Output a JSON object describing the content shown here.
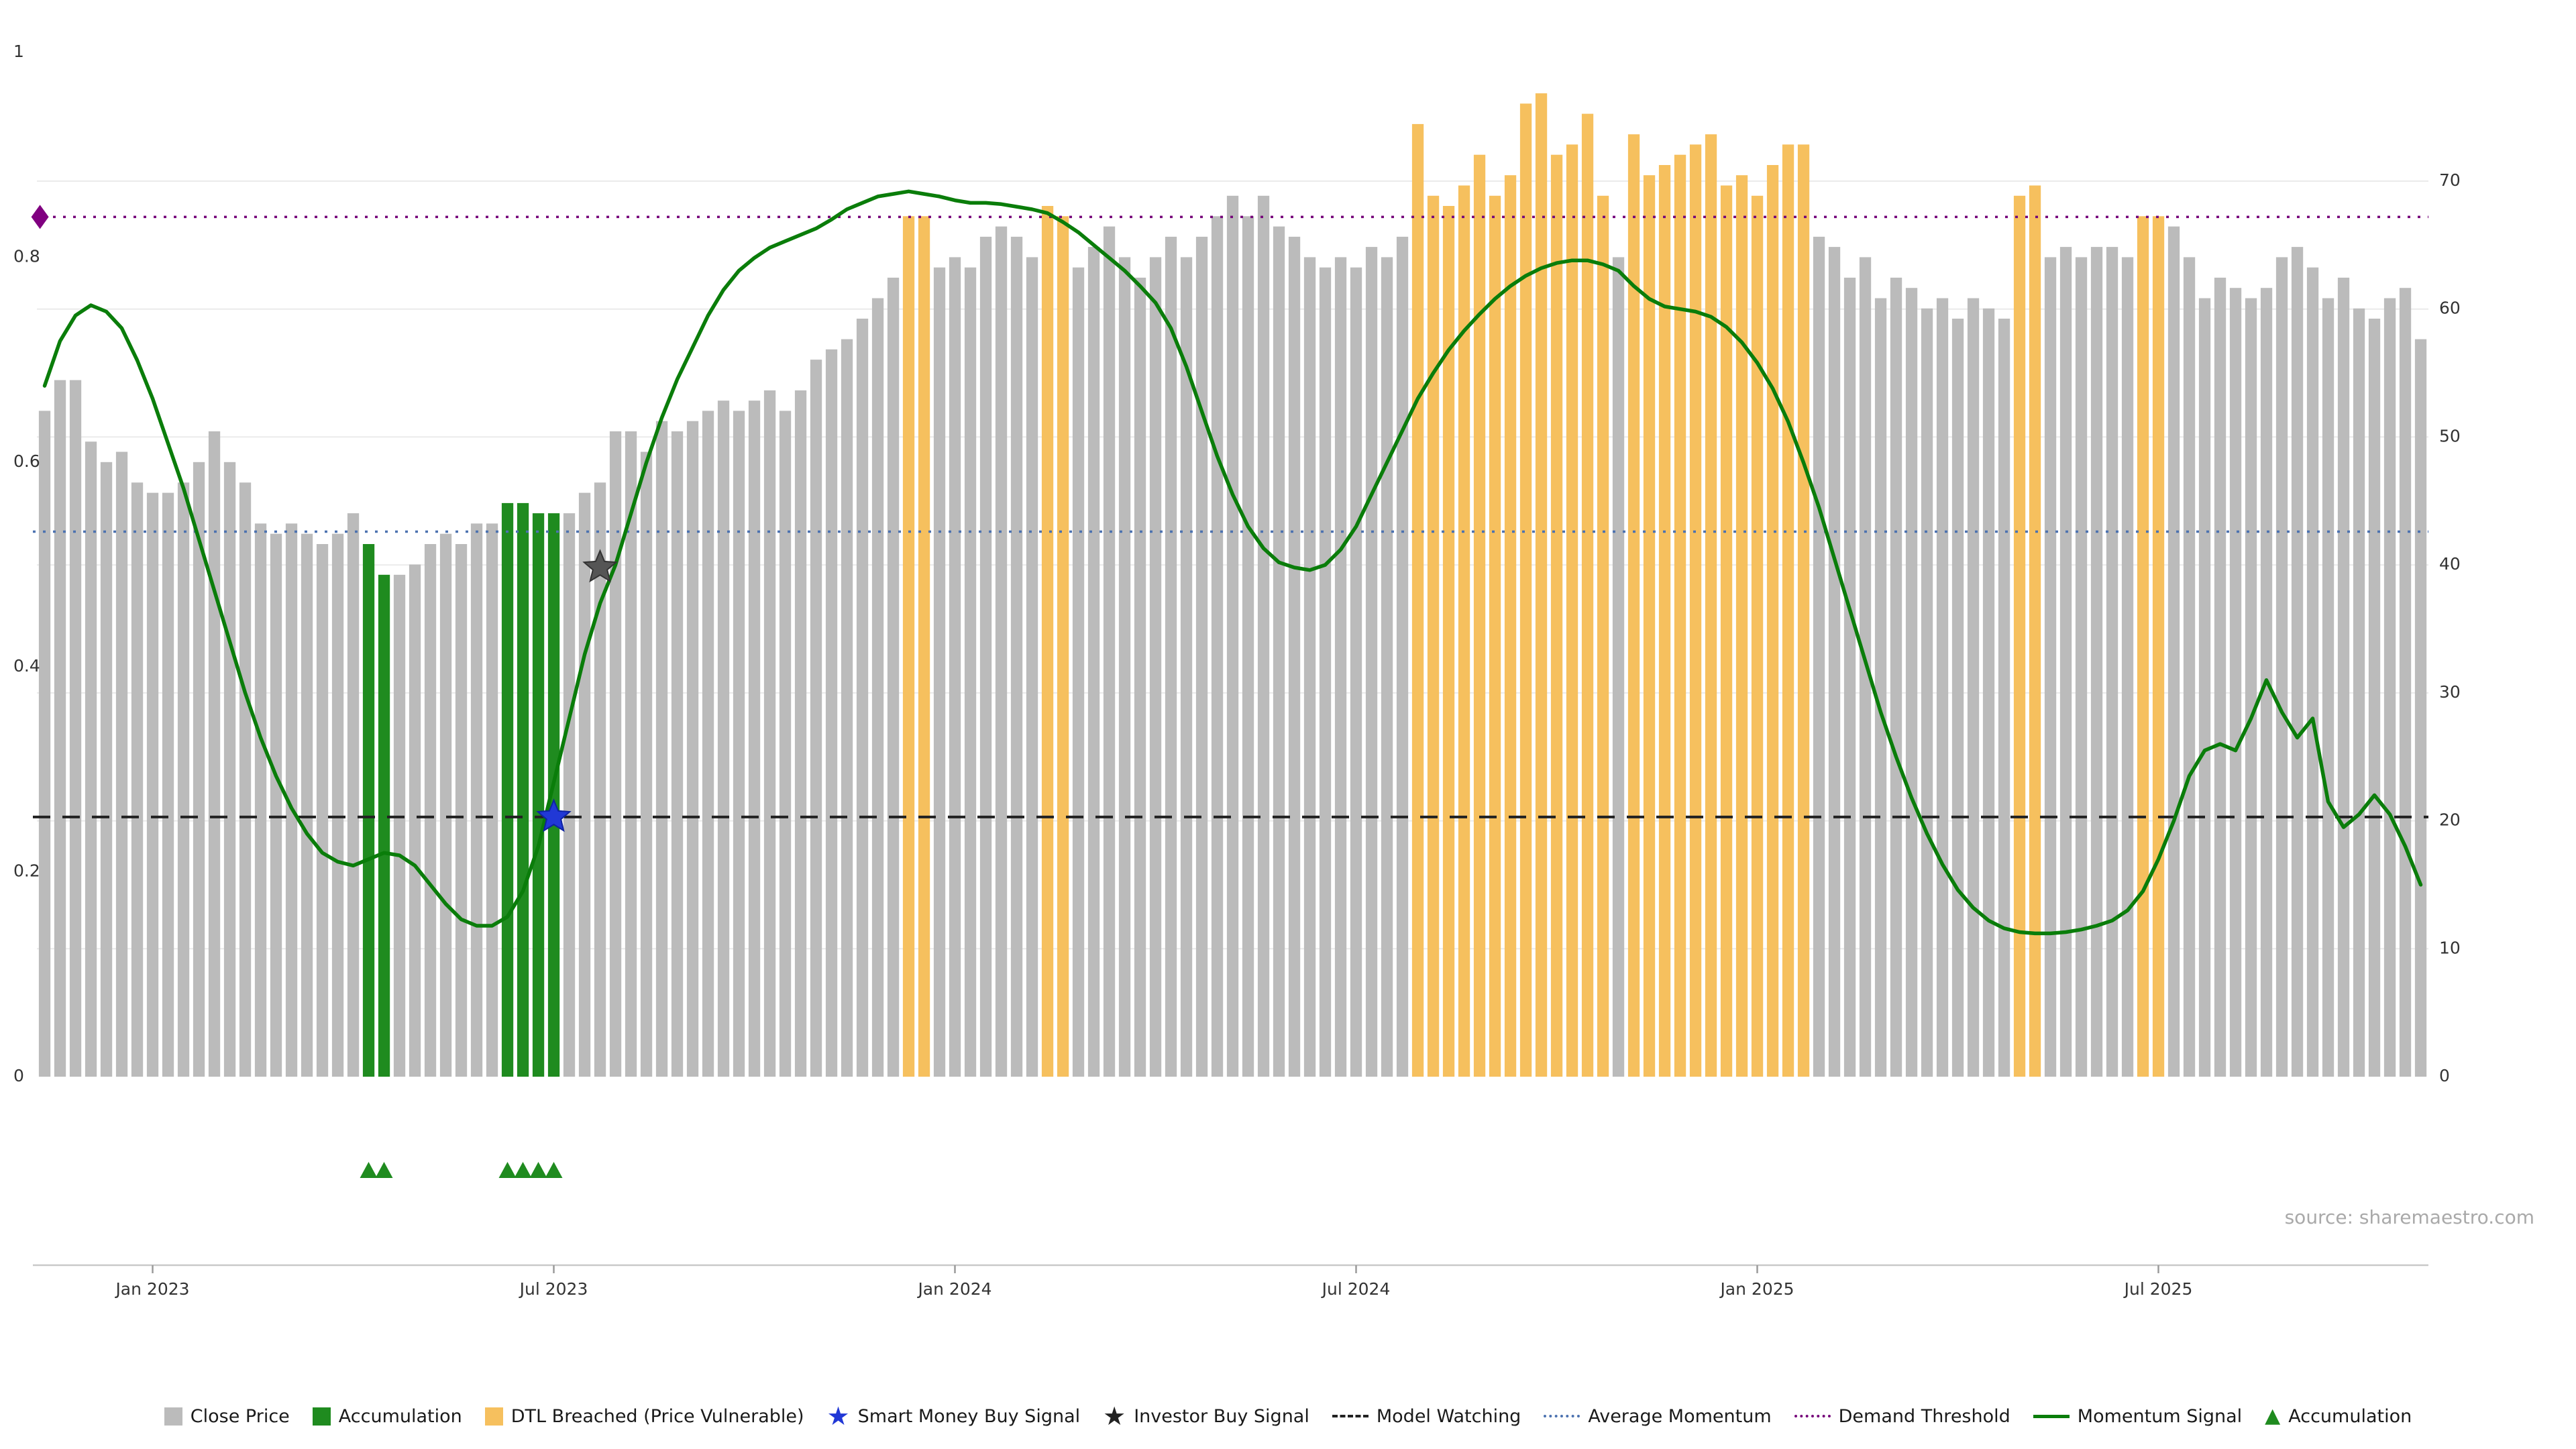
{
  "source_text": "source: sharemaestro.com",
  "colors": {
    "bar_gray": "#bbbbbb",
    "bar_green": "#1f8b1f",
    "bar_orange": "#f6c05e",
    "momentum_line": "#0a7d0a",
    "average_momentum": "#4c72b0",
    "demand_threshold": "#76067a",
    "model_watching": "#222222",
    "smart_money_star": "#2138d6",
    "investor_star": "#555555",
    "demand_diamond": "#800080",
    "grid": "#ebebeb",
    "axis_line": "#c9c9c9",
    "tick_text": "#333333"
  },
  "chart_data": {
    "type": "bar",
    "title": "",
    "xlabel": "",
    "ylabel_left": "",
    "ylabel_right": "",
    "x_tick_labels": [
      "Jan 2023",
      "Jul 2023",
      "Jan 2024",
      "Jul 2024",
      "Jan 2025",
      "Jul 2025"
    ],
    "x_tick_indices": [
      7,
      33,
      59,
      85,
      111,
      137
    ],
    "left_axis": {
      "ticks": [
        0,
        0.2,
        0.4,
        0.6,
        0.8,
        1
      ],
      "range": [
        0,
        1
      ]
    },
    "right_axis": {
      "ticks": [
        0,
        10,
        20,
        30,
        40,
        50,
        60,
        70
      ],
      "range": [
        0,
        70
      ]
    },
    "grid": "horizontal-faint",
    "legend_position": "bottom-center",
    "series": [
      {
        "name": "Close Price",
        "type": "bar",
        "axis": "left",
        "values": [
          0.65,
          0.68,
          0.68,
          0.62,
          0.6,
          0.61,
          0.58,
          0.57,
          0.57,
          0.58,
          0.6,
          0.63,
          0.6,
          0.58,
          0.54,
          0.53,
          0.54,
          0.53,
          0.52,
          0.53,
          0.55,
          0.52,
          0.49,
          0.49,
          0.5,
          0.52,
          0.53,
          0.52,
          0.54,
          0.54,
          0.56,
          0.56,
          0.55,
          0.55,
          0.55,
          0.57,
          0.58,
          0.63,
          0.63,
          0.61,
          0.64,
          0.63,
          0.64,
          0.65,
          0.66,
          0.65,
          0.66,
          0.67,
          0.65,
          0.67,
          0.7,
          0.71,
          0.72,
          0.74,
          0.76,
          0.78,
          0.84,
          0.84,
          0.79,
          0.8,
          0.79,
          0.82,
          0.83,
          0.82,
          0.8,
          0.85,
          0.84,
          0.79,
          0.81,
          0.83,
          0.8,
          0.78,
          0.8,
          0.82,
          0.8,
          0.82,
          0.84,
          0.86,
          0.84,
          0.86,
          0.83,
          0.82,
          0.8,
          0.79,
          0.8,
          0.79,
          0.81,
          0.8,
          0.82,
          0.93,
          0.86,
          0.85,
          0.87,
          0.9,
          0.86,
          0.88,
          0.95,
          0.96,
          0.9,
          0.91,
          0.94,
          0.86,
          0.8,
          0.92,
          0.88,
          0.89,
          0.9,
          0.91,
          0.92,
          0.87,
          0.88,
          0.86,
          0.89,
          0.91,
          0.91,
          0.82,
          0.81,
          0.78,
          0.8,
          0.76,
          0.78,
          0.77,
          0.75,
          0.76,
          0.74,
          0.76,
          0.75,
          0.74,
          0.86,
          0.87,
          0.8,
          0.81,
          0.8,
          0.81,
          0.81,
          0.8,
          0.84,
          0.84,
          0.83,
          0.8,
          0.76,
          0.78,
          0.77,
          0.76,
          0.77,
          0.8,
          0.81,
          0.79,
          0.76,
          0.78,
          0.75,
          0.74,
          0.76,
          0.77,
          0.72
        ]
      },
      {
        "name": "Momentum Signal",
        "type": "line",
        "axis": "right",
        "values": [
          54,
          57.5,
          59.5,
          60.3,
          59.8,
          58.5,
          56,
          53,
          49.5,
          46,
          42,
          38,
          34,
          30,
          26.5,
          23.5,
          21,
          19,
          17.5,
          16.8,
          16.5,
          17,
          17.5,
          17.3,
          16.5,
          15,
          13.5,
          12.3,
          11.8,
          11.8,
          12.5,
          14.5,
          18,
          23,
          28,
          33,
          37,
          40,
          44,
          48,
          51.5,
          54.5,
          57,
          59.5,
          61.5,
          63,
          64,
          64.8,
          65.3,
          65.8,
          66.3,
          67,
          67.8,
          68.3,
          68.8,
          69,
          69.2,
          69,
          68.8,
          68.5,
          68.3,
          68.3,
          68.2,
          68,
          67.8,
          67.5,
          66.8,
          66,
          65,
          64,
          63,
          61.8,
          60.5,
          58.5,
          55.5,
          52,
          48.5,
          45.5,
          43,
          41.3,
          40.2,
          39.8,
          39.6,
          40,
          41.2,
          43,
          45.5,
          48,
          50.5,
          53,
          55,
          56.8,
          58.3,
          59.6,
          60.8,
          61.8,
          62.6,
          63.2,
          63.6,
          63.8,
          63.8,
          63.5,
          63,
          61.8,
          60.8,
          60.2,
          60,
          59.8,
          59.4,
          58.6,
          57.4,
          55.8,
          53.8,
          51.2,
          48,
          44.5,
          40.5,
          36.5,
          32.5,
          28.5,
          25,
          21.8,
          19,
          16.6,
          14.6,
          13.2,
          12.2,
          11.6,
          11.3,
          11.2,
          11.2,
          11.3,
          11.5,
          11.8,
          12.2,
          13,
          14.5,
          17,
          20,
          23.5,
          25.5,
          26,
          25.5,
          28,
          31,
          28.5,
          26.5,
          28,
          21.5,
          19.5,
          20.5,
          22,
          20.5,
          18,
          15
        ]
      }
    ],
    "bar_highlights": {
      "accumulation_indices": [
        21,
        22,
        30,
        31,
        32,
        33
      ],
      "dtl_breached_indices": [
        56,
        57,
        65,
        66,
        89,
        90,
        91,
        92,
        93,
        94,
        95,
        96,
        97,
        98,
        99,
        100,
        101,
        103,
        104,
        105,
        106,
        107,
        108,
        109,
        110,
        111,
        112,
        113,
        114,
        128,
        129,
        136,
        137
      ]
    },
    "reference_lines": [
      {
        "name": "Demand Threshold",
        "axis": "right",
        "value": 67.2,
        "style": "dotted"
      },
      {
        "name": "Average Momentum",
        "axis": "right",
        "value": 42.6,
        "style": "dotted"
      },
      {
        "name": "Model Watching",
        "axis": "right",
        "value": 20.3,
        "style": "dashed"
      }
    ],
    "markers": [
      {
        "name": "Smart Money Buy Signal",
        "shape": "star",
        "index": 33,
        "value": 20.3,
        "axis": "right"
      },
      {
        "name": "Investor Buy Signal",
        "shape": "star",
        "index": 36,
        "value": 39.8,
        "axis": "right"
      },
      {
        "name": "Demand Threshold Start",
        "shape": "diamond",
        "index": -0.3,
        "value": 67.2,
        "axis": "right"
      }
    ],
    "accumulation_triangle_indices": [
      21,
      22,
      30,
      31,
      32,
      33
    ]
  },
  "legend": {
    "items": [
      {
        "label": "Close Price",
        "marker": "square",
        "color_key": "bar_gray"
      },
      {
        "label": "Accumulation",
        "marker": "square",
        "color_key": "bar_green"
      },
      {
        "label": "DTL Breached (Price Vulnerable)",
        "marker": "square",
        "color_key": "bar_orange"
      },
      {
        "label": "Smart Money Buy Signal",
        "marker": "star",
        "color_key": "smart_money_star"
      },
      {
        "label": "Investor Buy Signal",
        "marker": "star",
        "color_key": "model_watching"
      },
      {
        "label": "Model Watching",
        "marker": "dashed-line",
        "color_key": "model_watching"
      },
      {
        "label": "Average Momentum",
        "marker": "dotted-line",
        "color_key": "average_momentum"
      },
      {
        "label": "Demand Threshold",
        "marker": "dotted-line",
        "color_key": "demand_threshold"
      },
      {
        "label": "Momentum Signal",
        "marker": "solid-line",
        "color_key": "momentum_line"
      },
      {
        "label": "Accumulation",
        "marker": "triangle",
        "color_key": "bar_green"
      }
    ]
  }
}
